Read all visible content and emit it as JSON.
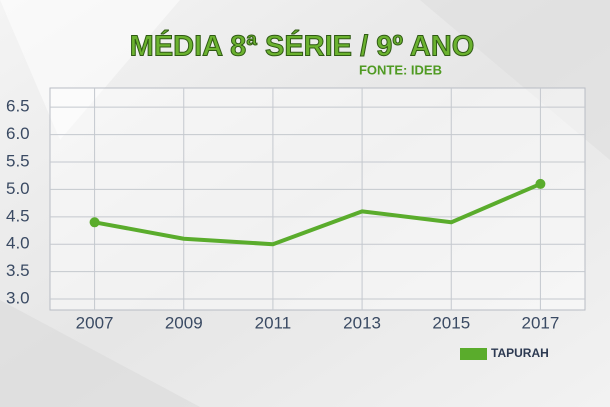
{
  "chart_data": {
    "type": "line",
    "title": "MÉDIA 8ª SÉRIE / 9º ANO",
    "subtitle": "FONTE: IDEB",
    "categories": [
      "2007",
      "2009",
      "2011",
      "2013",
      "2015",
      "2017"
    ],
    "series": [
      {
        "name": "TAPURAH",
        "color": "#5aac2c",
        "values": [
          4.4,
          4.1,
          4.0,
          4.6,
          4.4,
          5.1
        ]
      }
    ],
    "ylim": [
      2.8,
      6.85
    ],
    "yticks": [
      {
        "value": 3,
        "label": "3.0"
      },
      3.5,
      {
        "value": 4,
        "label": "4.0"
      },
      4.5,
      {
        "value": 5,
        "label": "5.0"
      },
      5.5,
      {
        "value": 6,
        "label": "6.0"
      },
      6.5
    ],
    "grid": true,
    "legend": "bottom-right"
  }
}
